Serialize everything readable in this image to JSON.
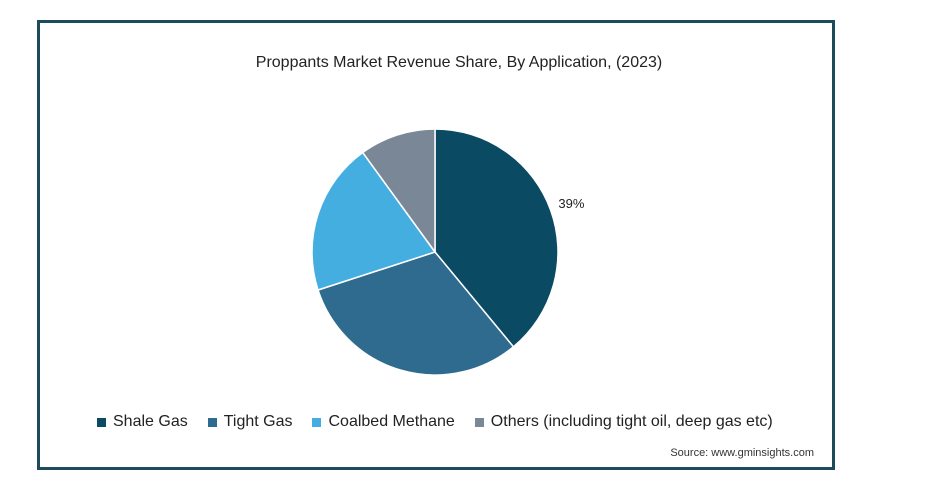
{
  "chart_data": {
    "type": "pie",
    "title": "Proppants Market Revenue Share, By Application, (2023)",
    "categories": [
      "Shale Gas",
      "Tight Gas",
      "Coalbed Methane",
      "Others (including tight oil, deep gas etc)"
    ],
    "values": [
      39,
      31,
      20,
      10
    ],
    "data_labels": [
      "39%"
    ],
    "colors": [
      "#0b4a63",
      "#2e6b8e",
      "#45aee1",
      "#7a8797"
    ],
    "legend_position": "bottom"
  },
  "source": "Source: www.gminsights.com"
}
